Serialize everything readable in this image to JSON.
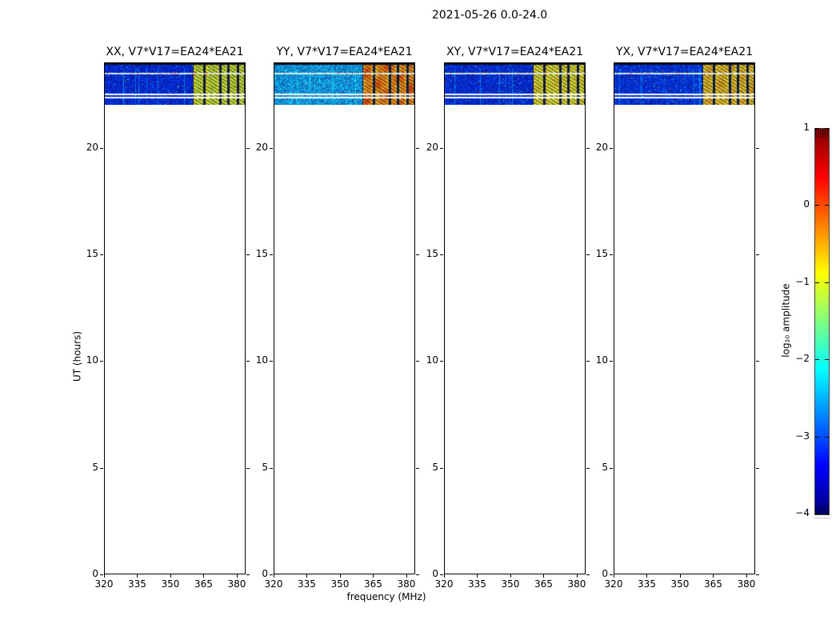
{
  "chart_data": {
    "type": "heatmap",
    "suptitle": "2021-05-26 0.0-24.0",
    "xlabel": "frequency (MHz)",
    "ylabel": "UT (hours)",
    "xlim": [
      320,
      384
    ],
    "ylim": [
      0,
      24
    ],
    "xticks": [
      320,
      335,
      350,
      365,
      380
    ],
    "xticklabels": [
      "320",
      "335",
      "350",
      "365",
      "380"
    ],
    "yticks": [
      0,
      5,
      10,
      15,
      20
    ],
    "yticklabels": [
      "0",
      "5",
      "10",
      "15",
      "20"
    ],
    "grid": false,
    "panels": [
      {
        "title": "XX, V7*V17=EA24*EA21",
        "seed": 7,
        "bg_level_log10": -3.3,
        "stripe_level_log10": -1.6,
        "base_color": "#0420c8",
        "stripe_color": "#bcd83c",
        "stripe_edge_color": "#e8e434",
        "stripe_hot_color": "#d8c030",
        "hot_amount": 0.15,
        "cyan_speck": 0.012
      },
      {
        "title": "YY, V7*V17=EA24*EA21",
        "seed": 13,
        "bg_level_log10": -2.6,
        "stripe_level_log10": -0.7,
        "base_color": "#1086d4",
        "stripe_color": "#f08a1c",
        "stripe_edge_color": "#f2cc2c",
        "stripe_hot_color": "#d83008",
        "hot_amount": 0.7,
        "cyan_speck": 0.05
      },
      {
        "title": "XY, V7*V17=EA24*EA21",
        "seed": 23,
        "bg_level_log10": -3.3,
        "stripe_level_log10": -1.5,
        "base_color": "#0422c8",
        "stripe_color": "#d4d838",
        "stripe_edge_color": "#ecdc34",
        "stripe_hot_color": "#e8a028",
        "hot_amount": 0.3,
        "cyan_speck": 0.012
      },
      {
        "title": "YX, V7*V17=EA24*EA21",
        "seed": 31,
        "bg_level_log10": -3.2,
        "stripe_level_log10": -1.2,
        "base_color": "#0428cc",
        "stripe_color": "#e0bc2e",
        "stripe_edge_color": "#ecd83c",
        "stripe_hot_color": "#e88820",
        "hot_amount": 0.45,
        "cyan_speck": 0.015
      },
      {
        "note": "all four panels share identical axes; data present only for UT 22.0-24.0"
      }
    ],
    "band": {
      "data_ut_range": [
        22.0,
        24.0
      ],
      "rfi_region": [
        0.625,
        1.0
      ],
      "stripes": [
        [
          0.633,
          0.7
        ],
        [
          0.718,
          0.814
        ],
        [
          0.83,
          0.87
        ],
        [
          0.887,
          0.938
        ],
        [
          0.958,
          0.99
        ]
      ],
      "rfi_bands_mhz": [
        [
          360.5,
          364.8
        ],
        [
          366.0,
          372.1
        ],
        [
          373.1,
          375.7
        ],
        [
          376.8,
          380.1
        ],
        [
          381.3,
          383.4
        ]
      ],
      "bright_line_ut": 23.5,
      "white_lines_ut": [
        22.55,
        22.38
      ],
      "bright_row": 12,
      "white_rows": [
        38,
        42
      ],
      "gap_color": "#020a18"
    },
    "colorbar": {
      "label": "log₁₀ amplitude",
      "cmap": "jet",
      "vmin": -4,
      "vmax": 1,
      "ticks": [
        1,
        0,
        -1,
        -2,
        -3,
        -4
      ],
      "ticklabels": [
        "1",
        "0",
        "−1",
        "−2",
        "−3",
        "−4"
      ],
      "colors": [
        "#7f0000",
        "#ff0000",
        "#ffff00",
        "#00ffff",
        "#0000ff",
        "#00007f"
      ],
      "stops_pct": [
        0,
        12.5,
        37.5,
        62.5,
        87.5,
        100
      ]
    }
  }
}
